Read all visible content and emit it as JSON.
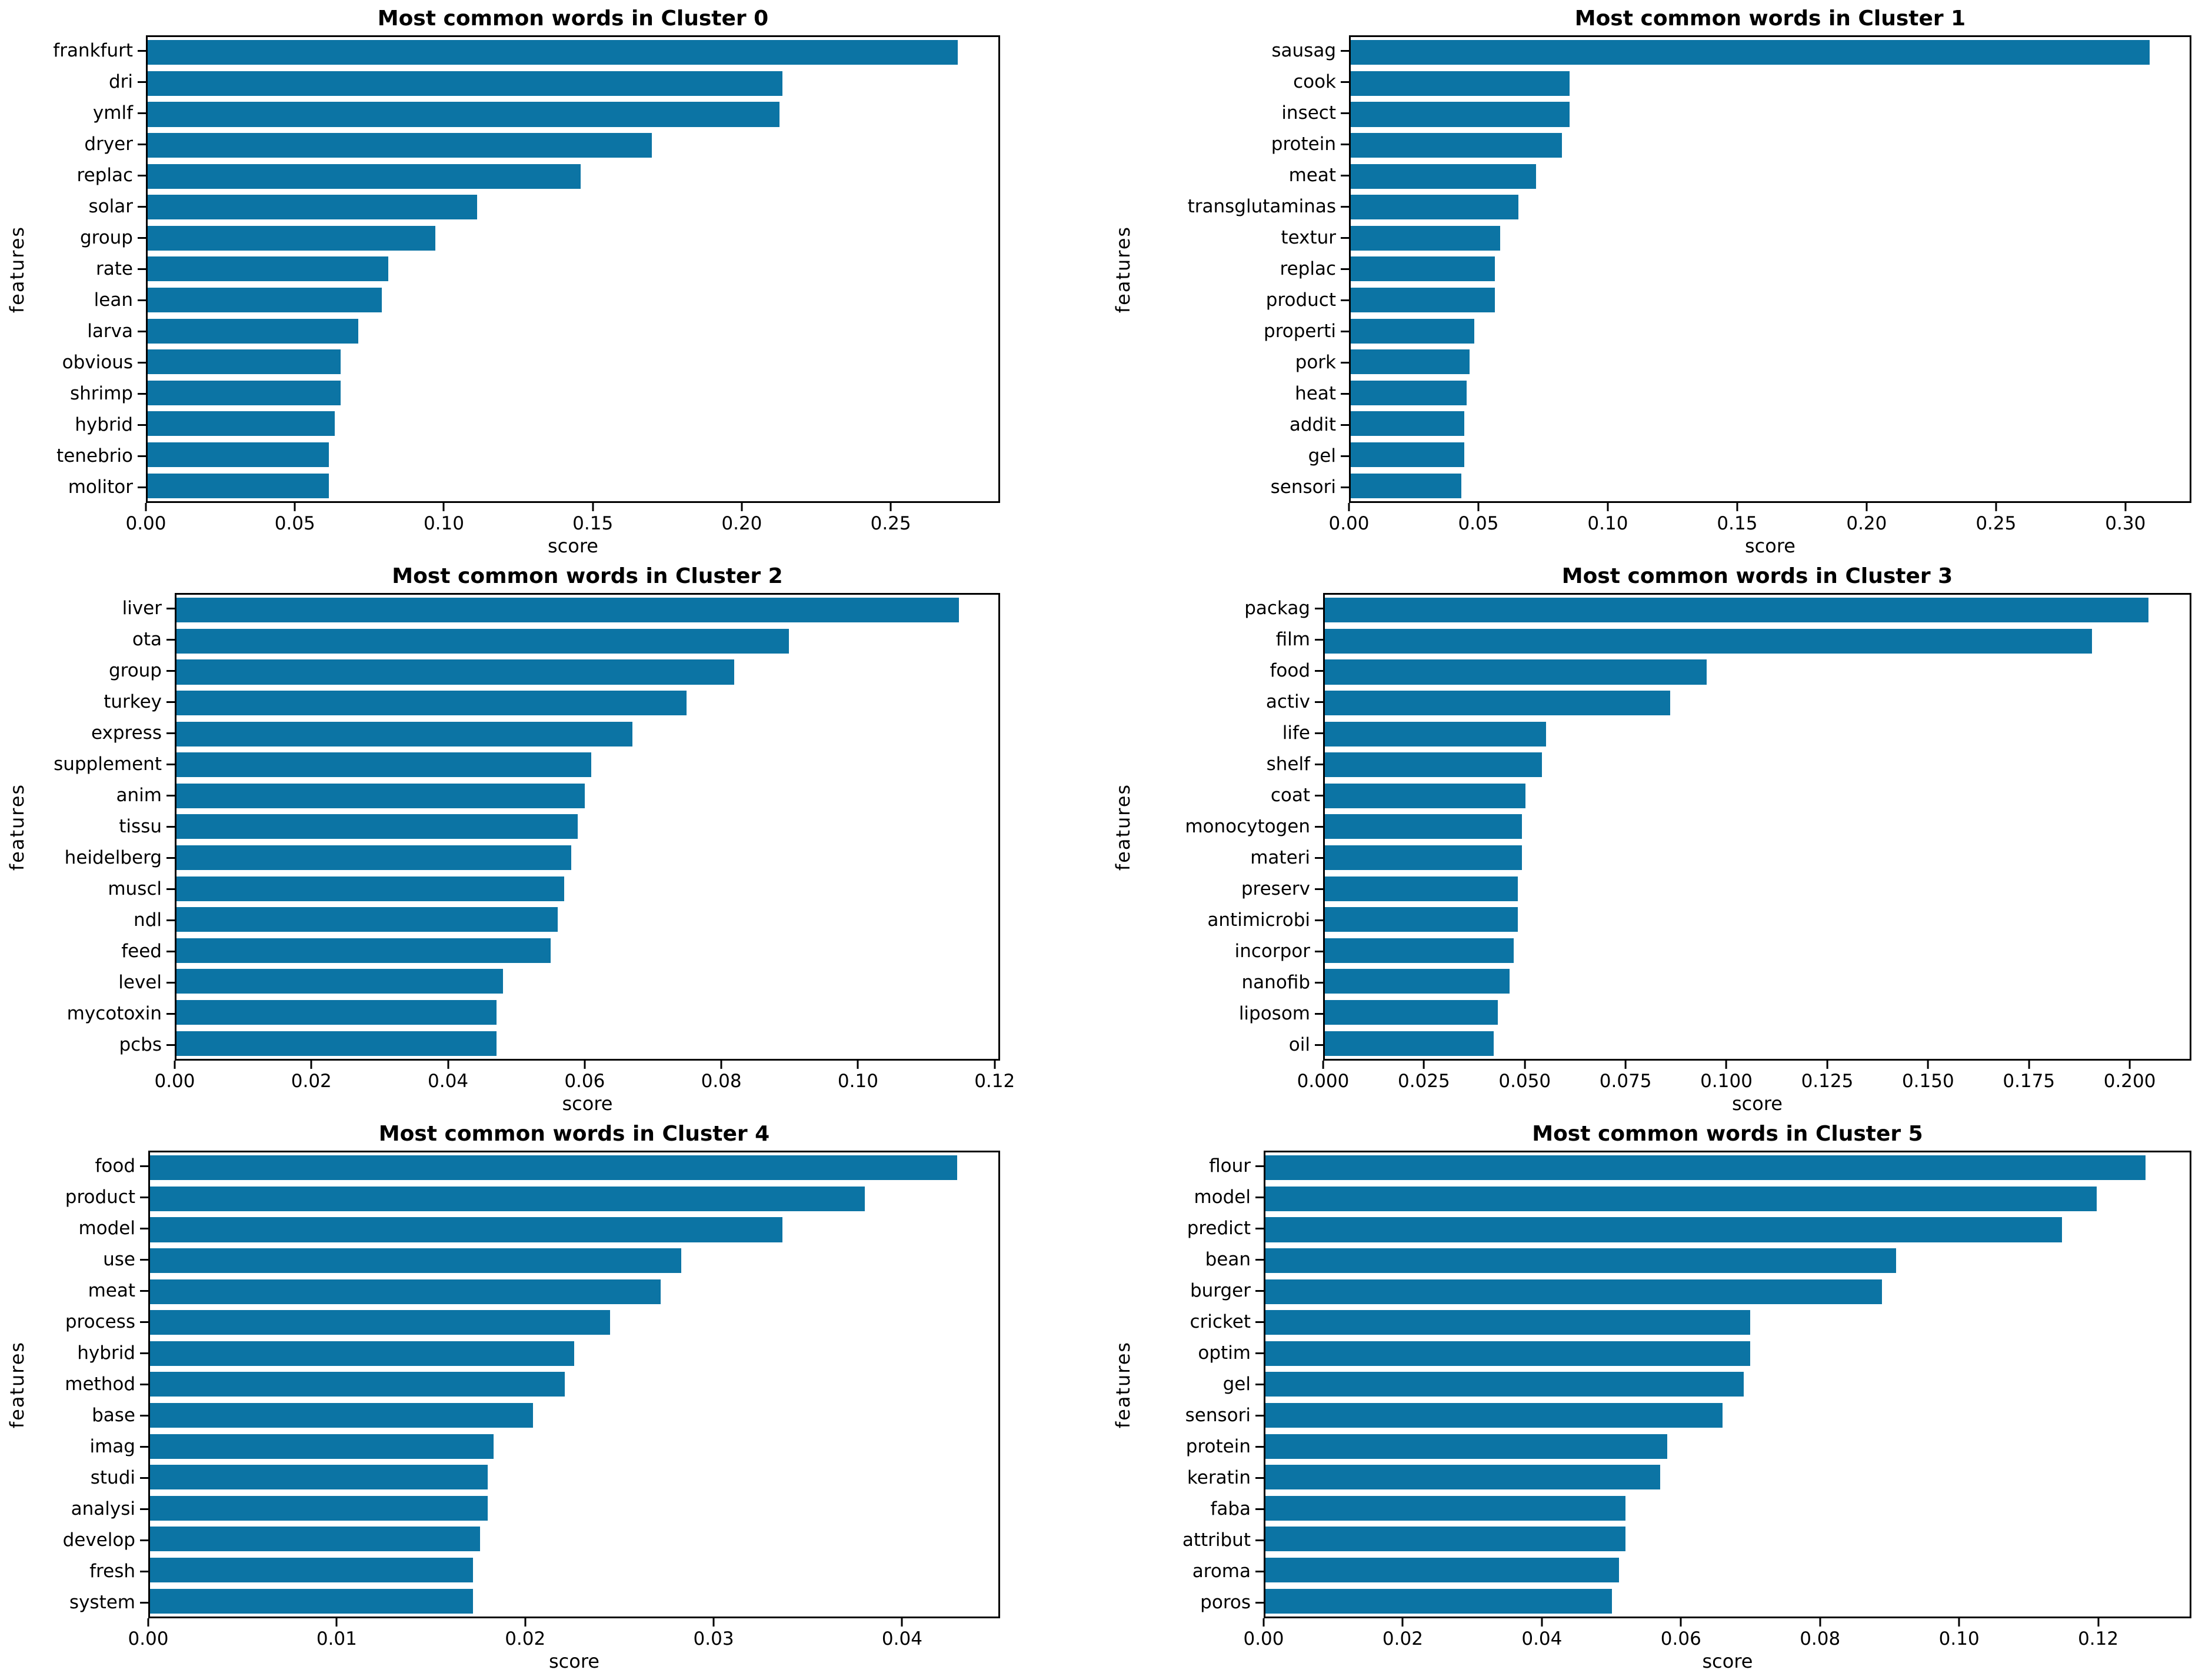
{
  "style": {
    "bar_color": "#0c74a4",
    "text_color": "#000000",
    "background": "#ffffff"
  },
  "chart_data": [
    {
      "type": "bar",
      "orientation": "horizontal",
      "title": "Most common words in Cluster 0",
      "xlabel": "score",
      "ylabel": "features",
      "categories": [
        "frankfurt",
        "dri",
        "ymlf",
        "dryer",
        "replac",
        "solar",
        "group",
        "rate",
        "lean",
        "larva",
        "obvious",
        "shrimp",
        "hybrid",
        "tenebrio",
        "molitor"
      ],
      "values": [
        0.273,
        0.214,
        0.213,
        0.17,
        0.146,
        0.111,
        0.097,
        0.081,
        0.079,
        0.071,
        0.065,
        0.065,
        0.063,
        0.061,
        0.061
      ],
      "xlim": [
        0,
        0.2867
      ],
      "xticks": [
        0,
        0.05,
        0.1,
        0.15,
        0.2,
        0.25
      ],
      "xtick_labels": [
        "0.00",
        "0.05",
        "0.10",
        "0.15",
        "0.20",
        "0.25"
      ],
      "grid": false,
      "legend": null
    },
    {
      "type": "bar",
      "orientation": "horizontal",
      "title": "Most common words in Cluster 1",
      "xlabel": "score",
      "ylabel": "features",
      "categories": [
        "sausag",
        "cook",
        "insect",
        "protein",
        "meat",
        "transglutaminas",
        "textur",
        "replac",
        "product",
        "properti",
        "pork",
        "heat",
        "addit",
        "gel",
        "sensori"
      ],
      "values": [
        0.31,
        0.085,
        0.085,
        0.082,
        0.072,
        0.065,
        0.058,
        0.056,
        0.056,
        0.048,
        0.046,
        0.045,
        0.044,
        0.044,
        0.043
      ],
      "xlim": [
        0,
        0.3255
      ],
      "xticks": [
        0,
        0.05,
        0.1,
        0.15,
        0.2,
        0.25,
        0.3
      ],
      "xtick_labels": [
        "0.00",
        "0.05",
        "0.10",
        "0.15",
        "0.20",
        "0.25",
        "0.30"
      ],
      "grid": false,
      "legend": null
    },
    {
      "type": "bar",
      "orientation": "horizontal",
      "title": "Most common words in Cluster 2",
      "xlabel": "score",
      "ylabel": "features",
      "categories": [
        "liver",
        "ota",
        "group",
        "turkey",
        "express",
        "supplement",
        "anim",
        "tissu",
        "heidelberg",
        "muscl",
        "ndl",
        "feed",
        "level",
        "mycotoxin",
        "pcbs"
      ],
      "values": [
        0.115,
        0.09,
        0.082,
        0.075,
        0.067,
        0.061,
        0.06,
        0.059,
        0.058,
        0.057,
        0.056,
        0.055,
        0.048,
        0.047,
        0.047
      ],
      "xlim": [
        0,
        0.1208
      ],
      "xticks": [
        0,
        0.02,
        0.04,
        0.06,
        0.08,
        0.1,
        0.12
      ],
      "xtick_labels": [
        "0.00",
        "0.02",
        "0.04",
        "0.06",
        "0.08",
        "0.10",
        "0.12"
      ],
      "grid": false,
      "legend": null
    },
    {
      "type": "bar",
      "orientation": "horizontal",
      "title": "Most common words in Cluster 3",
      "xlabel": "score",
      "ylabel": "features",
      "categories": [
        "packag",
        "film",
        "food",
        "activ",
        "life",
        "shelf",
        "coat",
        "monocytogen",
        "materi",
        "preserv",
        "antimicrobi",
        "incorpor",
        "nanofib",
        "liposom",
        "oil"
      ],
      "values": [
        0.205,
        0.191,
        0.095,
        0.086,
        0.055,
        0.054,
        0.05,
        0.049,
        0.049,
        0.048,
        0.048,
        0.047,
        0.046,
        0.043,
        0.042
      ],
      "xlim": [
        0,
        0.2153
      ],
      "xticks": [
        0,
        0.025,
        0.05,
        0.075,
        0.1,
        0.125,
        0.15,
        0.175,
        0.2
      ],
      "xtick_labels": [
        "0.000",
        "0.025",
        "0.050",
        "0.075",
        "0.100",
        "0.125",
        "0.150",
        "0.175",
        "0.200"
      ],
      "grid": false,
      "legend": null
    },
    {
      "type": "bar",
      "orientation": "horizontal",
      "title": "Most common words in Cluster 4",
      "xlabel": "score",
      "ylabel": "features",
      "categories": [
        "food",
        "product",
        "model",
        "use",
        "meat",
        "process",
        "hybrid",
        "method",
        "base",
        "imag",
        "studi",
        "analysi",
        "develop",
        "fresh",
        "system"
      ],
      "values": [
        0.043,
        0.0381,
        0.0337,
        0.0283,
        0.0272,
        0.0245,
        0.0226,
        0.0221,
        0.0204,
        0.0183,
        0.018,
        0.018,
        0.0176,
        0.0172,
        0.0172
      ],
      "xlim": [
        0,
        0.0452
      ],
      "xticks": [
        0,
        0.01,
        0.02,
        0.03,
        0.04
      ],
      "xtick_labels": [
        "0.00",
        "0.01",
        "0.02",
        "0.03",
        "0.04"
      ],
      "grid": false,
      "legend": null
    },
    {
      "type": "bar",
      "orientation": "horizontal",
      "title": "Most common words in Cluster 5",
      "xlabel": "score",
      "ylabel": "features",
      "categories": [
        "flour",
        "model",
        "predict",
        "bean",
        "burger",
        "cricket",
        "optim",
        "gel",
        "sensori",
        "protein",
        "keratin",
        "faba",
        "attribut",
        "aroma",
        "poros"
      ],
      "values": [
        0.127,
        0.12,
        0.115,
        0.091,
        0.089,
        0.07,
        0.07,
        0.069,
        0.066,
        0.058,
        0.057,
        0.052,
        0.052,
        0.051,
        0.05
      ],
      "xlim": [
        0,
        0.1334
      ],
      "xticks": [
        0,
        0.02,
        0.04,
        0.06,
        0.08,
        0.1,
        0.12
      ],
      "xtick_labels": [
        "0.00",
        "0.02",
        "0.04",
        "0.06",
        "0.08",
        "0.10",
        "0.12"
      ],
      "grid": false,
      "legend": null
    }
  ]
}
